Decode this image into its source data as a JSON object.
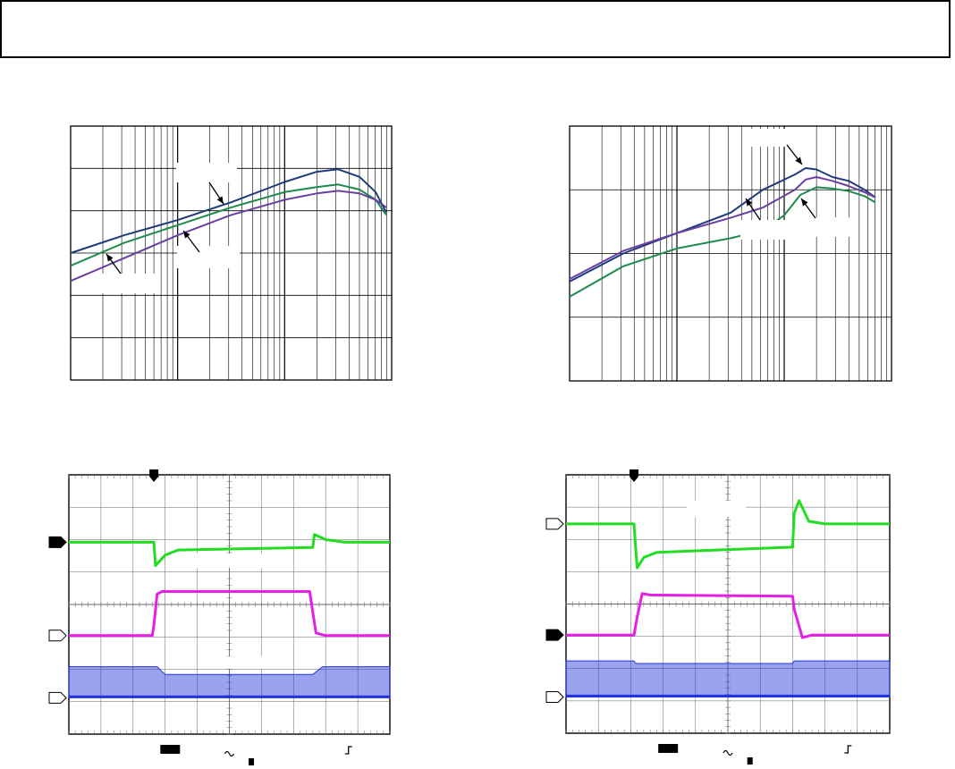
{
  "header": {
    "text": ""
  },
  "colors": {
    "navy": "#1f3a7a",
    "green": "#1e8a4a",
    "purple": "#6a3fa0",
    "scope_green": "#22dd22",
    "scope_magenta": "#e61ee6",
    "scope_blue": "#2233dd",
    "grid": "#000000"
  },
  "chart_data": [
    {
      "type": "line",
      "x_scale": "log",
      "x_decades": 3,
      "y_divisions": 6,
      "grid": true,
      "series": [
        {
          "color": "navy",
          "values": [
            [
              0.0,
              0.5
            ],
            [
              0.5,
              0.57
            ],
            [
              1.0,
              0.63
            ],
            [
              1.5,
              0.7
            ],
            [
              2.0,
              0.78
            ],
            [
              2.3,
              0.82
            ],
            [
              2.5,
              0.83
            ],
            [
              2.7,
              0.8
            ],
            [
              2.85,
              0.74
            ],
            [
              2.95,
              0.66
            ]
          ]
        },
        {
          "color": "green",
          "values": [
            [
              0.0,
              0.45
            ],
            [
              0.5,
              0.54
            ],
            [
              1.0,
              0.61
            ],
            [
              1.5,
              0.68
            ],
            [
              2.0,
              0.74
            ],
            [
              2.3,
              0.76
            ],
            [
              2.5,
              0.77
            ],
            [
              2.7,
              0.75
            ],
            [
              2.85,
              0.71
            ],
            [
              2.95,
              0.65
            ]
          ]
        },
        {
          "color": "purple",
          "values": [
            [
              0.0,
              0.39
            ],
            [
              0.5,
              0.48
            ],
            [
              1.0,
              0.57
            ],
            [
              1.5,
              0.65
            ],
            [
              2.0,
              0.71
            ],
            [
              2.3,
              0.735
            ],
            [
              2.5,
              0.745
            ],
            [
              2.7,
              0.735
            ],
            [
              2.85,
              0.71
            ],
            [
              2.95,
              0.68
            ]
          ]
        }
      ]
    },
    {
      "type": "line",
      "x_scale": "log",
      "x_decades": 3,
      "y_divisions": 4,
      "grid": true,
      "series": [
        {
          "color": "navy",
          "values": [
            [
              0.0,
              0.39
            ],
            [
              0.5,
              0.5
            ],
            [
              1.0,
              0.58
            ],
            [
              1.5,
              0.66
            ],
            [
              1.8,
              0.75
            ],
            [
              2.1,
              0.81
            ],
            [
              2.2,
              0.835
            ],
            [
              2.3,
              0.83
            ],
            [
              2.45,
              0.8
            ],
            [
              2.6,
              0.785
            ],
            [
              2.75,
              0.75
            ],
            [
              2.85,
              0.72
            ]
          ]
        },
        {
          "color": "purple",
          "values": [
            [
              0.0,
              0.4
            ],
            [
              0.5,
              0.51
            ],
            [
              1.0,
              0.58
            ],
            [
              1.5,
              0.64
            ],
            [
              1.8,
              0.68
            ],
            [
              2.1,
              0.75
            ],
            [
              2.2,
              0.79
            ],
            [
              2.3,
              0.8
            ],
            [
              2.45,
              0.785
            ],
            [
              2.6,
              0.765
            ],
            [
              2.75,
              0.74
            ],
            [
              2.85,
              0.72
            ]
          ]
        },
        {
          "color": "green",
          "values": [
            [
              0.0,
              0.33
            ],
            [
              0.5,
              0.45
            ],
            [
              1.0,
              0.52
            ],
            [
              1.5,
              0.56
            ],
            [
              1.8,
              0.59
            ],
            [
              2.0,
              0.65
            ],
            [
              2.15,
              0.73
            ],
            [
              2.3,
              0.76
            ],
            [
              2.45,
              0.755
            ],
            [
              2.6,
              0.745
            ],
            [
              2.75,
              0.725
            ],
            [
              2.85,
              0.7
            ]
          ]
        }
      ]
    },
    {
      "type": "scope",
      "x_divisions": 10,
      "y_divisions": 8,
      "grid": true,
      "markers": [
        "filled",
        "hollow",
        "hollow"
      ],
      "traces": [
        {
          "color": "scope_green",
          "kind": "line",
          "values": [
            [
              0,
              0.74
            ],
            [
              2.65,
              0.74
            ],
            [
              2.7,
              0.65
            ],
            [
              3.0,
              0.69
            ],
            [
              3.4,
              0.71
            ],
            [
              7.6,
              0.72
            ],
            [
              7.65,
              0.77
            ],
            [
              8.0,
              0.75
            ],
            [
              8.6,
              0.74
            ],
            [
              10,
              0.74
            ]
          ]
        },
        {
          "color": "scope_magenta",
          "kind": "line",
          "values": [
            [
              0,
              0.38
            ],
            [
              2.6,
              0.38
            ],
            [
              2.65,
              0.42
            ],
            [
              2.75,
              0.54
            ],
            [
              2.9,
              0.55
            ],
            [
              7.5,
              0.55
            ],
            [
              7.55,
              0.51
            ],
            [
              7.7,
              0.39
            ],
            [
              8.0,
              0.38
            ],
            [
              10,
              0.38
            ]
          ]
        },
        {
          "color": "scope_blue",
          "kind": "band",
          "values": [
            [
              0,
              0.26,
              0.14
            ],
            [
              2.75,
              0.26,
              0.14
            ],
            [
              3.0,
              0.23,
              0.14
            ],
            [
              7.6,
              0.23,
              0.14
            ],
            [
              7.9,
              0.26,
              0.14
            ],
            [
              10,
              0.26,
              0.14
            ]
          ]
        }
      ]
    },
    {
      "type": "scope",
      "x_divisions": 10,
      "y_divisions": 8,
      "grid": true,
      "markers": [
        "hollow",
        "filled",
        "hollow"
      ],
      "traces": [
        {
          "color": "scope_green",
          "kind": "line",
          "values": [
            [
              0,
              0.81
            ],
            [
              2.1,
              0.81
            ],
            [
              2.15,
              0.72
            ],
            [
              2.2,
              0.64
            ],
            [
              2.4,
              0.68
            ],
            [
              2.8,
              0.7
            ],
            [
              7.0,
              0.72
            ],
            [
              7.05,
              0.85
            ],
            [
              7.2,
              0.9
            ],
            [
              7.5,
              0.82
            ],
            [
              8.0,
              0.81
            ],
            [
              10,
              0.81
            ]
          ]
        },
        {
          "color": "scope_magenta",
          "kind": "line",
          "values": [
            [
              0,
              0.38
            ],
            [
              2.1,
              0.38
            ],
            [
              2.2,
              0.45
            ],
            [
              2.35,
              0.54
            ],
            [
              2.6,
              0.535
            ],
            [
              7.0,
              0.53
            ],
            [
              7.05,
              0.48
            ],
            [
              7.3,
              0.37
            ],
            [
              7.6,
              0.38
            ],
            [
              10,
              0.38
            ]
          ]
        },
        {
          "color": "scope_blue",
          "kind": "band",
          "values": [
            [
              0,
              0.28,
              0.14
            ],
            [
              2.1,
              0.28,
              0.14
            ],
            [
              2.15,
              0.27,
              0.14
            ],
            [
              7.0,
              0.27,
              0.14
            ],
            [
              7.05,
              0.28,
              0.14
            ],
            [
              10,
              0.28,
              0.14
            ]
          ]
        }
      ]
    }
  ]
}
